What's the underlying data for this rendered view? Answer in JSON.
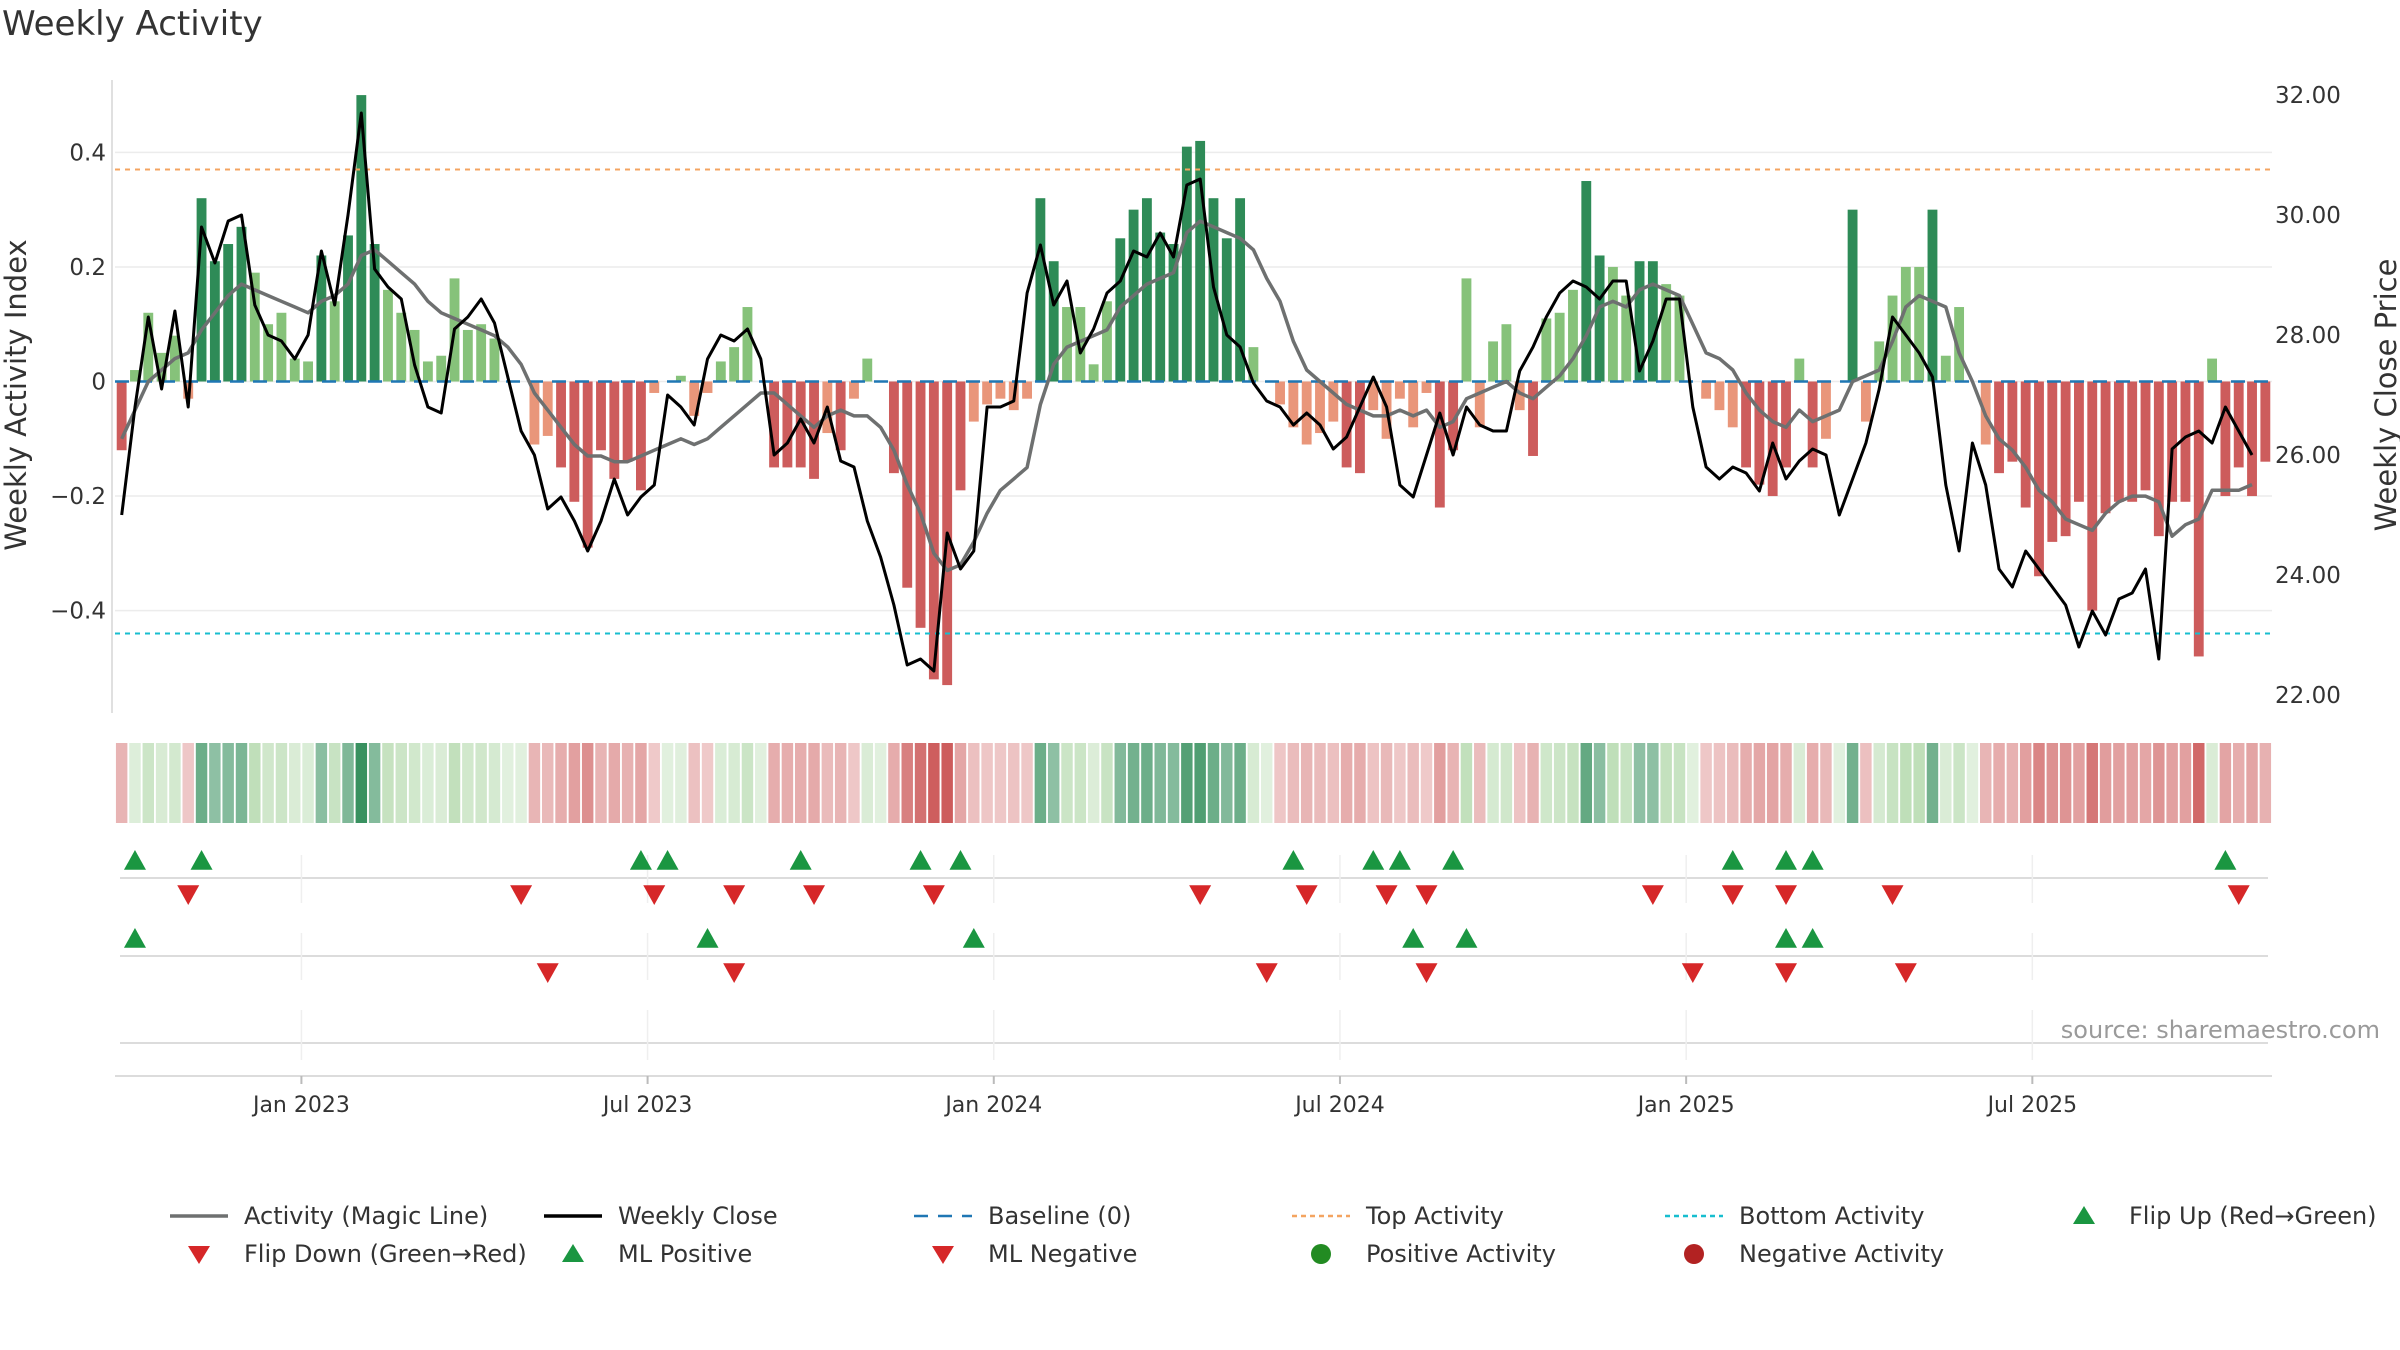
{
  "title": "Weekly Activity",
  "source": "source: sharemaestro.com",
  "colors": {
    "pos_dark": "#2e8b57",
    "pos_light": "#86c27a",
    "neg_dark": "#cd5c5c",
    "neg_light": "#e9967a",
    "magic_line": "#6e7070",
    "close_line": "#000000",
    "baseline": "#1f77b4",
    "top": "#f4a460",
    "bottom": "#17becf",
    "flip_up": "#1a9641",
    "flip_down": "#d62728",
    "pos_dot": "#228b22",
    "neg_dot": "#b22222"
  },
  "chart_data": {
    "type": "bar",
    "title": "Weekly Activity",
    "ylabel_left": "Weekly Activity Index",
    "ylabel_right": "Weekly Close Price",
    "y_ticks_left": [
      "0.4",
      "0.2",
      "0",
      "−0.2",
      "−0.4"
    ],
    "y_ticks_left_values": [
      0.4,
      0.2,
      0,
      -0.2,
      -0.4
    ],
    "ylim_left": [
      -0.57,
      0.57
    ],
    "y_ticks_right": [
      "32.00",
      "30.00",
      "28.00",
      "26.00",
      "24.00",
      "22.00"
    ],
    "y_ticks_right_values": [
      32,
      30,
      28,
      26,
      24,
      22
    ],
    "ylim_right": [
      22,
      32
    ],
    "x_ticks": [
      "Jan 2023",
      "Jul 2023",
      "Jan 2024",
      "Jul 2024",
      "Jan 2025",
      "Jul 2025"
    ],
    "x_tick_weeks": [
      14,
      40,
      66,
      92,
      118,
      144
    ],
    "top_activity": 0.37,
    "bottom_activity": -0.44,
    "activity": [
      -0.12,
      0.02,
      0.12,
      0.05,
      0.08,
      -0.03,
      0.32,
      0.21,
      0.24,
      0.27,
      0.19,
      0.1,
      0.12,
      0.04,
      0.035,
      0.22,
      0.14,
      0.255,
      0.5,
      0.24,
      0.16,
      0.12,
      0.09,
      0.035,
      0.045,
      0.18,
      0.09,
      0.1,
      0.075,
      0.0,
      0.0,
      -0.11,
      -0.095,
      -0.15,
      -0.21,
      -0.29,
      -0.12,
      -0.17,
      -0.14,
      -0.19,
      -0.02,
      0.0,
      0.01,
      -0.06,
      -0.02,
      0.035,
      0.06,
      0.13,
      0.0,
      -0.15,
      -0.15,
      -0.15,
      -0.17,
      -0.09,
      -0.12,
      -0.03,
      0.04,
      0.0,
      -0.16,
      -0.36,
      -0.43,
      -0.52,
      -0.53,
      -0.19,
      -0.07,
      -0.04,
      -0.03,
      -0.05,
      -0.03,
      0.32,
      0.21,
      0.13,
      0.13,
      0.03,
      0.14,
      0.25,
      0.3,
      0.32,
      0.26,
      0.24,
      0.41,
      0.42,
      0.32,
      0.25,
      0.32,
      0.06,
      0.0,
      -0.04,
      -0.08,
      -0.11,
      -0.09,
      -0.07,
      -0.15,
      -0.16,
      -0.05,
      -0.1,
      -0.03,
      -0.08,
      -0.02,
      -0.22,
      -0.12,
      0.18,
      -0.08,
      0.07,
      0.1,
      -0.05,
      -0.13,
      0.11,
      0.12,
      0.16,
      0.35,
      0.22,
      0.2,
      0.15,
      0.21,
      0.21,
      0.17,
      0.15,
      0.0,
      -0.03,
      -0.05,
      -0.08,
      -0.15,
      -0.18,
      -0.2,
      -0.15,
      0.04,
      -0.15,
      -0.1,
      0.0,
      0.3,
      -0.07,
      0.07,
      0.15,
      0.2,
      0.2,
      0.3,
      0.045,
      0.13,
      0.0,
      -0.11,
      -0.16,
      -0.14,
      -0.22,
      -0.34,
      -0.28,
      -0.27,
      -0.21,
      -0.4,
      -0.23,
      -0.21,
      -0.21,
      -0.19,
      -0.27,
      -0.21,
      -0.21,
      -0.48,
      0.04,
      -0.2,
      -0.15,
      -0.2,
      -0.14
    ],
    "magic_line": [
      -0.1,
      -0.05,
      0.0,
      0.02,
      0.04,
      0.05,
      0.09,
      0.12,
      0.15,
      0.17,
      0.16,
      0.15,
      0.14,
      0.13,
      0.12,
      0.14,
      0.15,
      0.17,
      0.22,
      0.23,
      0.21,
      0.19,
      0.17,
      0.14,
      0.12,
      0.11,
      0.1,
      0.09,
      0.08,
      0.06,
      0.03,
      -0.02,
      -0.05,
      -0.08,
      -0.11,
      -0.13,
      -0.13,
      -0.14,
      -0.14,
      -0.13,
      -0.12,
      -0.11,
      -0.1,
      -0.11,
      -0.1,
      -0.08,
      -0.06,
      -0.04,
      -0.02,
      -0.02,
      -0.04,
      -0.06,
      -0.08,
      -0.06,
      -0.05,
      -0.06,
      -0.06,
      -0.08,
      -0.12,
      -0.18,
      -0.23,
      -0.3,
      -0.33,
      -0.32,
      -0.28,
      -0.23,
      -0.19,
      -0.17,
      -0.15,
      -0.04,
      0.03,
      0.06,
      0.07,
      0.08,
      0.09,
      0.13,
      0.15,
      0.17,
      0.18,
      0.19,
      0.26,
      0.28,
      0.27,
      0.26,
      0.25,
      0.23,
      0.18,
      0.14,
      0.07,
      0.02,
      0.0,
      -0.02,
      -0.04,
      -0.05,
      -0.06,
      -0.06,
      -0.05,
      -0.06,
      -0.05,
      -0.08,
      -0.07,
      -0.03,
      -0.02,
      -0.01,
      0.0,
      -0.02,
      -0.03,
      -0.01,
      0.01,
      0.04,
      0.08,
      0.13,
      0.14,
      0.13,
      0.16,
      0.17,
      0.16,
      0.15,
      0.1,
      0.05,
      0.04,
      0.02,
      -0.02,
      -0.05,
      -0.07,
      -0.08,
      -0.05,
      -0.07,
      -0.06,
      -0.05,
      0.0,
      0.01,
      0.02,
      0.07,
      0.13,
      0.15,
      0.14,
      0.13,
      0.05,
      0.0,
      -0.06,
      -0.1,
      -0.12,
      -0.15,
      -0.19,
      -0.21,
      -0.24,
      -0.25,
      -0.26,
      -0.23,
      -0.21,
      -0.2,
      -0.2,
      -0.21,
      -0.27,
      -0.25,
      -0.24,
      -0.19,
      -0.19,
      -0.19,
      -0.18
    ],
    "weekly_close": [
      25.0,
      26.8,
      28.3,
      27.1,
      28.4,
      26.8,
      29.8,
      29.2,
      29.9,
      30.0,
      28.5,
      28.0,
      27.9,
      27.6,
      28.0,
      29.4,
      28.5,
      30.0,
      31.7,
      29.1,
      28.8,
      28.6,
      27.5,
      26.8,
      26.7,
      28.1,
      28.3,
      28.6,
      28.2,
      27.3,
      26.4,
      26.0,
      25.1,
      25.3,
      24.9,
      24.4,
      24.9,
      25.6,
      25.0,
      25.3,
      25.5,
      27.0,
      26.8,
      26.5,
      27.6,
      28.0,
      27.9,
      28.1,
      27.6,
      26.0,
      26.2,
      26.6,
      26.2,
      26.8,
      25.9,
      25.8,
      24.9,
      24.3,
      23.5,
      22.5,
      22.6,
      22.4,
      24.7,
      24.1,
      24.4,
      26.8,
      26.8,
      26.9,
      28.7,
      29.5,
      28.5,
      28.9,
      27.7,
      28.1,
      28.7,
      28.9,
      29.4,
      29.3,
      29.7,
      29.3,
      30.5,
      30.6,
      28.8,
      28.0,
      27.8,
      27.2,
      26.9,
      26.8,
      26.5,
      26.7,
      26.5,
      26.1,
      26.3,
      26.8,
      27.3,
      26.8,
      25.5,
      25.3,
      26.0,
      26.7,
      26.0,
      26.8,
      26.5,
      26.4,
      26.4,
      27.4,
      27.8,
      28.3,
      28.7,
      28.9,
      28.8,
      28.6,
      28.9,
      28.9,
      27.4,
      27.9,
      28.6,
      28.6,
      26.8,
      25.8,
      25.6,
      25.8,
      25.7,
      25.4,
      26.2,
      25.6,
      25.9,
      26.1,
      26.0,
      25.0,
      25.6,
      26.2,
      27.1,
      28.3,
      28.0,
      27.7,
      27.3,
      25.5,
      24.4,
      26.2,
      25.5,
      24.1,
      23.8,
      24.4,
      24.1,
      23.8,
      23.5,
      22.8,
      23.4,
      23.0,
      23.6,
      23.7,
      24.1,
      22.6,
      26.1,
      26.3,
      26.4,
      26.2,
      26.8,
      26.4,
      26.0
    ],
    "flip_up_weeks": [
      1,
      6,
      39,
      41,
      51,
      60,
      63,
      88,
      94,
      96,
      100,
      121,
      125,
      127,
      158
    ],
    "flip_down_weeks": [
      5,
      30,
      40,
      46,
      52,
      61,
      81,
      89,
      95,
      98,
      115,
      121,
      125,
      133,
      159
    ],
    "ml_positive_weeks": [
      1,
      44,
      64,
      97,
      101,
      125,
      127
    ],
    "ml_negative_weeks": [
      32,
      46,
      86,
      98,
      118,
      125,
      134
    ]
  },
  "legend": [
    {
      "label": "Activity (Magic Line)",
      "kind": "line",
      "style": "solid",
      "color_key": "magic_line"
    },
    {
      "label": "Weekly Close",
      "kind": "line",
      "style": "solid",
      "color_key": "close_line"
    },
    {
      "label": "Baseline (0)",
      "kind": "line",
      "style": "dashed",
      "color_key": "baseline"
    },
    {
      "label": "Top Activity",
      "kind": "line",
      "style": "dotted",
      "color_key": "top"
    },
    {
      "label": "Bottom Activity",
      "kind": "line",
      "style": "dotted",
      "color_key": "bottom"
    },
    {
      "label": "Flip Up (Red→Green)",
      "kind": "tri-up",
      "color_key": "flip_up"
    },
    {
      "label": "Flip Down (Green→Red)",
      "kind": "tri-down",
      "color_key": "flip_down"
    },
    {
      "label": "ML Positive",
      "kind": "tri-up",
      "color_key": "flip_up"
    },
    {
      "label": "ML Negative",
      "kind": "tri-down",
      "color_key": "flip_down"
    },
    {
      "label": "Positive Activity",
      "kind": "dot",
      "color_key": "pos_dot"
    },
    {
      "label": "Negative Activity",
      "kind": "dot",
      "color_key": "neg_dot"
    }
  ]
}
